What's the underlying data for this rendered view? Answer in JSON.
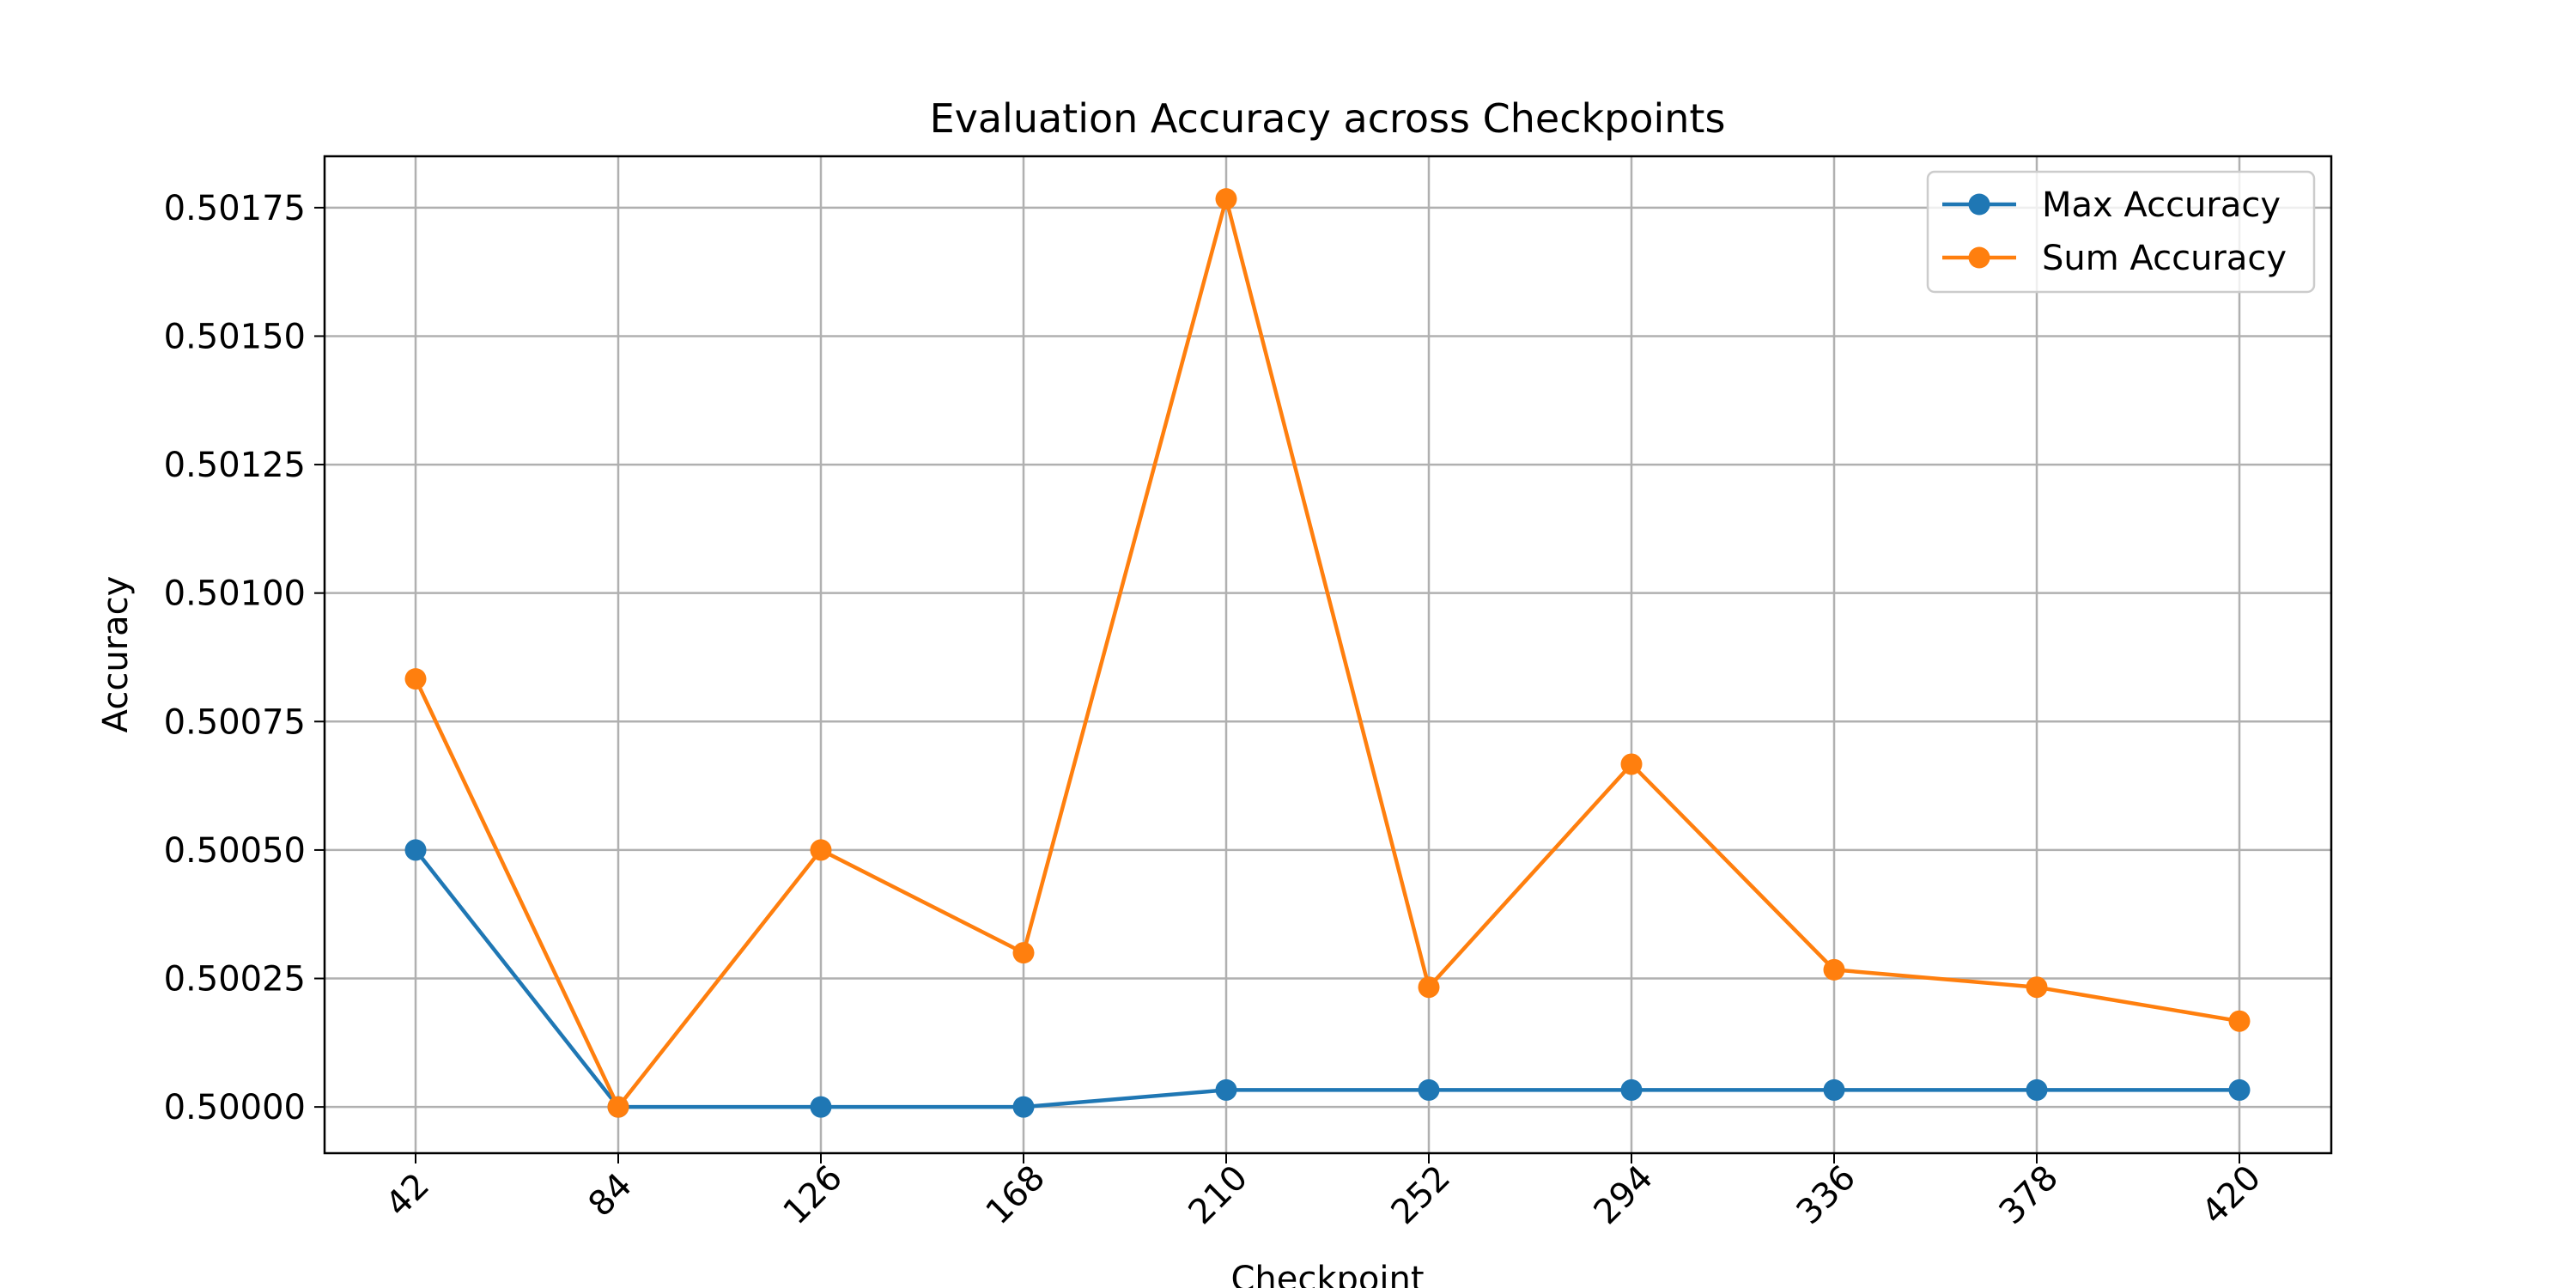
{
  "chart_data": {
    "type": "line",
    "title": "Evaluation Accuracy across Checkpoints",
    "xlabel": "Checkpoint",
    "ylabel": "Accuracy",
    "categories": [
      "42",
      "84",
      "126",
      "168",
      "210",
      "252",
      "294",
      "336",
      "378",
      "420"
    ],
    "x": [
      42,
      84,
      126,
      168,
      210,
      252,
      294,
      336,
      378,
      420
    ],
    "ylim": [
      0.49991,
      0.50185
    ],
    "yticks": [
      "0.50000",
      "0.50025",
      "0.50050",
      "0.50075",
      "0.50100",
      "0.50125",
      "0.50150",
      "0.50175"
    ],
    "grid": true,
    "legend_position": "top-right",
    "series": [
      {
        "name": "Max Accuracy",
        "color": "#1f77b4",
        "marker": "circle",
        "values": [
          0.5005,
          0.5,
          0.5,
          0.5,
          0.500033,
          0.500033,
          0.500033,
          0.500033,
          0.500033,
          0.500033
        ]
      },
      {
        "name": "Sum Accuracy",
        "color": "#ff7f0e",
        "marker": "circle",
        "values": [
          0.500833,
          0.5,
          0.5005,
          0.5003,
          0.501767,
          0.500233,
          0.500667,
          0.500267,
          0.500233,
          0.500167
        ]
      }
    ]
  }
}
